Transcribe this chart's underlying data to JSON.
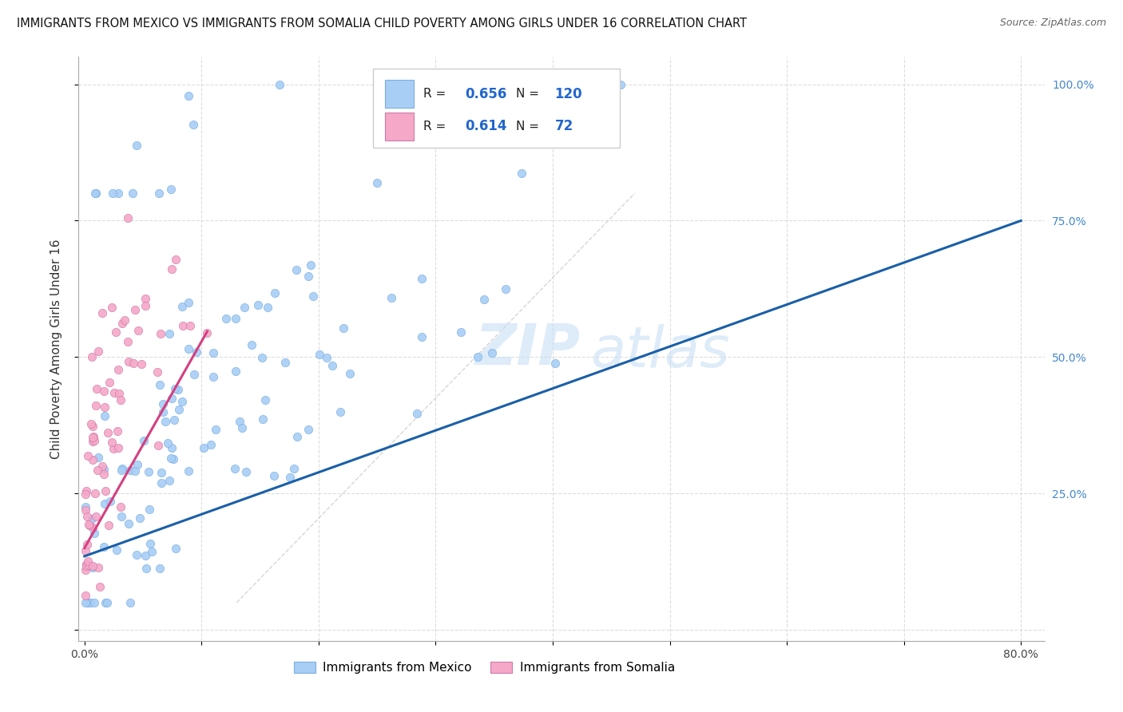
{
  "title": "IMMIGRANTS FROM MEXICO VS IMMIGRANTS FROM SOMALIA CHILD POVERTY AMONG GIRLS UNDER 16 CORRELATION CHART",
  "source": "Source: ZipAtlas.com",
  "ylabel": "Child Poverty Among Girls Under 16",
  "xlim": [
    0.0,
    0.8
  ],
  "ylim": [
    0.0,
    1.0
  ],
  "xtick_positions": [
    0.0,
    0.1,
    0.2,
    0.3,
    0.4,
    0.5,
    0.6,
    0.7,
    0.8
  ],
  "xticklabels": [
    "0.0%",
    "",
    "",
    "",
    "",
    "",
    "",
    "",
    "80.0%"
  ],
  "ytick_positions": [
    0.0,
    0.25,
    0.5,
    0.75,
    1.0
  ],
  "yticklabels_right": [
    "",
    "25.0%",
    "50.0%",
    "75.0%",
    "100.0%"
  ],
  "mexico_color": "#a8cef5",
  "mexico_edge": "#7aaee0",
  "somalia_color": "#f5a8c8",
  "somalia_edge": "#d07aaa",
  "mexico_line_color": "#1a5fa8",
  "somalia_line_color": "#d44080",
  "diag_line_color": "#cccccc",
  "R_mexico": 0.656,
  "N_mexico": 120,
  "R_somalia": 0.614,
  "N_somalia": 72,
  "grid_color": "#dddddd",
  "title_fontsize": 10.5,
  "source_fontsize": 9,
  "tick_fontsize": 10,
  "ylabel_fontsize": 11
}
